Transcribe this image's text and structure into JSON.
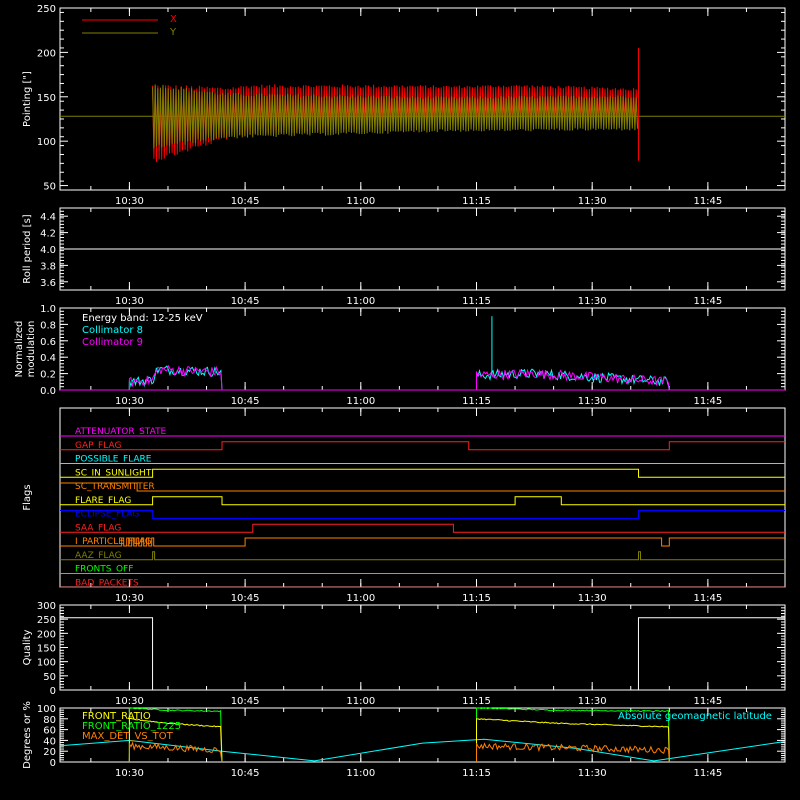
{
  "time_ticks": [
    "10:30",
    "10:45",
    "11:00",
    "11:15",
    "11:30",
    "11:45"
  ],
  "chart_data": [
    {
      "id": "pointing",
      "type": "line",
      "ylabel": "Pointing [\"]",
      "yticks": [
        50,
        100,
        150,
        200,
        250
      ],
      "ylim": [
        45,
        250
      ],
      "legend": [
        {
          "name": "X",
          "color": "#ff0000"
        },
        {
          "name": "Y",
          "color": "#808000"
        }
      ],
      "series": [
        {
          "name": "X",
          "color": "#ff0000",
          "t_start": "10:33",
          "t_end": "11:36",
          "center": [
            [
              0,
              120
            ],
            [
              0.2,
              135
            ],
            [
              0.5,
              140
            ],
            [
              0.75,
              142
            ],
            [
              1,
              138
            ]
          ],
          "half_width": [
            [
              0,
              45
            ],
            [
              0.15,
              30
            ],
            [
              0.6,
              22
            ],
            [
              1,
              22
            ]
          ]
        },
        {
          "name": "Y",
          "color": "#808000",
          "t_start": "10:33",
          "t_end": "11:36",
          "center": [
            [
              0,
              128
            ],
            [
              1,
              132
            ]
          ],
          "half_width": [
            [
              0,
              38
            ],
            [
              0.15,
              26
            ],
            [
              0.6,
              20
            ],
            [
              1,
              20
            ]
          ]
        }
      ],
      "baseline": 128
    },
    {
      "id": "roll",
      "type": "line",
      "ylabel": "Roll period [s]",
      "yticks": [
        3.6,
        3.8,
        4.0,
        4.2,
        4.4
      ],
      "ylim": [
        3.5,
        4.5
      ],
      "series": [
        {
          "name": "",
          "color": "#ffffff",
          "value": 4.0
        }
      ]
    },
    {
      "id": "modulation",
      "type": "line",
      "ylabel": "Normalized modulation",
      "yticks": [
        0.0,
        0.2,
        0.4,
        0.6,
        0.8,
        1.0
      ],
      "ylim": [
        0,
        1.0
      ],
      "legend": [
        {
          "name": "Energy band: 12-25 keV",
          "color": "#ffffff"
        },
        {
          "name": "Collimator 8",
          "color": "#00ffff"
        },
        {
          "name": "Collimator 9",
          "color": "#ff00ff"
        }
      ],
      "segments": [
        {
          "start": "10:30",
          "end": "10:42",
          "levels": [
            [
              0,
              0.1
            ],
            [
              0.25,
              0.12
            ],
            [
              0.3,
              0.25
            ],
            [
              1,
              0.22
            ]
          ]
        },
        {
          "start": "11:15",
          "end": "11:40",
          "levels": [
            [
              0,
              0.18
            ],
            [
              0.3,
              0.2
            ],
            [
              1,
              0.1
            ]
          ]
        }
      ],
      "spike": {
        "time": "11:17",
        "value": 0.9
      }
    },
    {
      "id": "flags",
      "type": "table",
      "ylabel": "Flags",
      "rows": [
        {
          "name": "ATTENUATOR_STATE",
          "color": "#ff00ff",
          "steps": []
        },
        {
          "name": "GAP_FLAG",
          "color": "#ff2020",
          "steps": [
            [
              "10:42",
              1
            ],
            [
              "11:14",
              0
            ],
            [
              "11:40",
              1
            ]
          ]
        },
        {
          "name": "POSSIBLE_FLARE",
          "color": "#00ffff",
          "steps": []
        },
        {
          "name": "SC_IN_SUNLIGHT",
          "color": "#ffff00",
          "steps": [
            [
              "10:33",
              1
            ],
            [
              "11:36",
              0
            ]
          ]
        },
        {
          "name": "SC_TRANSMITTER",
          "color": "#ff8000",
          "steps": [
            [
              "10:31",
              0
            ]
          ],
          "start_high": true
        },
        {
          "name": "FLARE_FLAG",
          "color": "#ffff00",
          "steps": [
            [
              "10:33",
              1
            ],
            [
              "10:42",
              0
            ],
            [
              "11:20",
              1
            ],
            [
              "11:26",
              0
            ]
          ]
        },
        {
          "name": "ECLIPSE_FLAG",
          "color": "#0000ff",
          "steps": [
            [
              "10:33",
              0
            ],
            [
              "11:36",
              1
            ]
          ],
          "start_high": true
        },
        {
          "name": "SAA_FLAG",
          "color": "#ff2020",
          "steps": [
            [
              "10:46",
              1
            ],
            [
              "11:12",
              0
            ]
          ]
        },
        {
          "name": "I_PARTICLE_FLAG",
          "color": "#ff8000",
          "steps": [
            [
              "10:44",
              0
            ],
            [
              "10:45",
              1
            ],
            [
              "11:39",
              0
            ],
            [
              "11:40",
              1
            ]
          ],
          "pulses_start": "10:29",
          "pulses_end": "10:33"
        },
        {
          "name": "AAZ_FLAG",
          "color": "#808000",
          "steps": [],
          "pulses": [
            "10:33",
            "11:36"
          ]
        },
        {
          "name": "FRONTS_OFF",
          "color": "#00ff00",
          "steps": []
        },
        {
          "name": "BAD_PACKETS",
          "color": "#ff2020",
          "steps": []
        }
      ]
    },
    {
      "id": "quality",
      "type": "line",
      "ylabel": "Quality",
      "yticks": [
        0,
        50,
        100,
        150,
        200,
        250,
        300
      ],
      "ylim": [
        0,
        300
      ],
      "series": [
        {
          "name": "",
          "color": "#ffffff",
          "steps": [
            [
              "10:21",
              255
            ],
            [
              "10:33",
              0
            ],
            [
              "11:36",
              255
            ]
          ]
        }
      ]
    },
    {
      "id": "geo",
      "type": "line",
      "ylabel": "Degrees or %",
      "yticks": [
        0,
        20,
        40,
        60,
        80,
        100
      ],
      "ylim": [
        0,
        100
      ],
      "legend": [
        {
          "name": "FRONT_RATIO",
          "color": "#ffff00"
        },
        {
          "name": "FRONT_RATIO_1225",
          "color": "#00ff00"
        },
        {
          "name": "MAX_DET_VS_TOT",
          "color": "#ff8000"
        }
      ],
      "annotation": {
        "text": "Absolute geomagnetic latitude",
        "color": "#00ffff"
      },
      "latitude": [
        [
          "10:21",
          30
        ],
        [
          "10:30",
          40
        ],
        [
          "10:42",
          20
        ],
        [
          "10:54",
          2
        ],
        [
          "11:08",
          35
        ],
        [
          "11:16",
          42
        ],
        [
          "11:28",
          25
        ],
        [
          "11:38",
          2
        ],
        [
          "11:55",
          38
        ]
      ]
    }
  ]
}
